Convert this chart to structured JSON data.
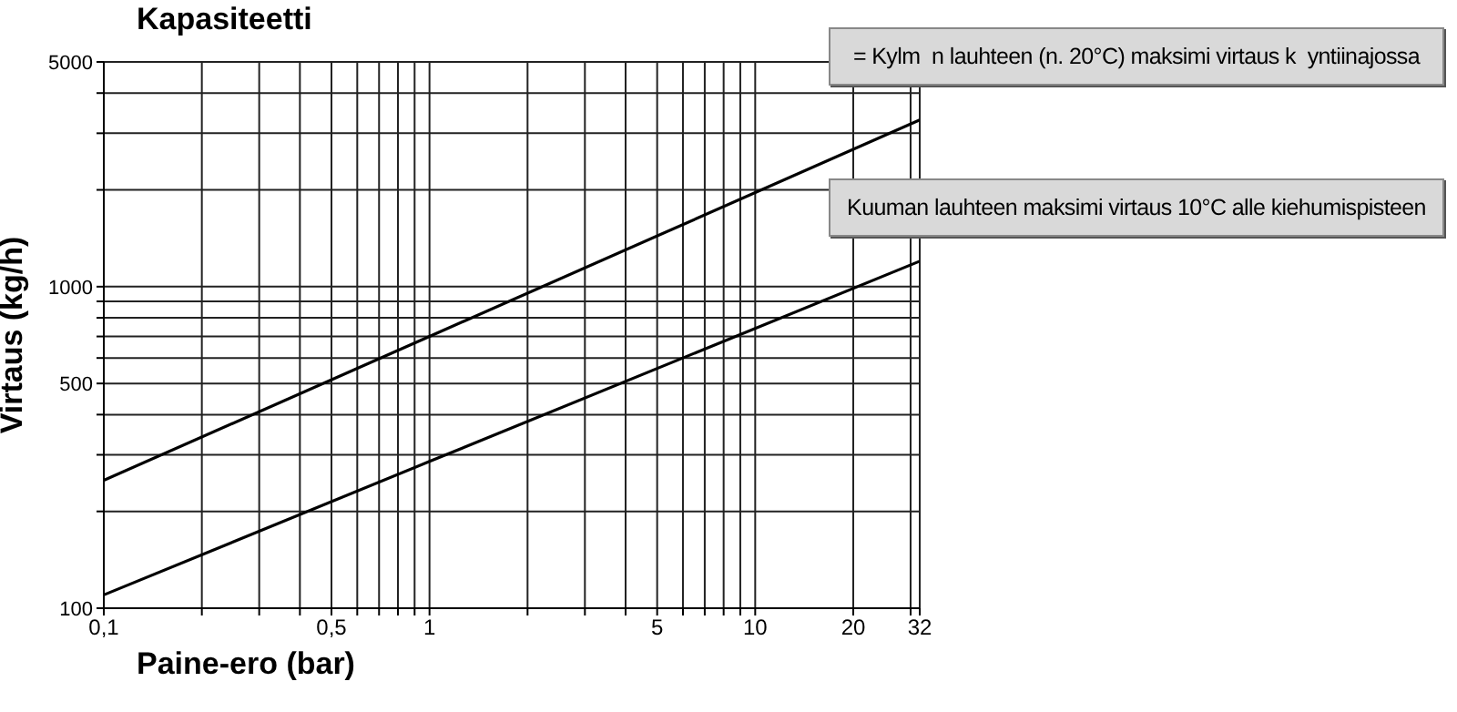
{
  "chart_data": {
    "type": "line",
    "title": "Kapasiteetti",
    "xlabel": "Paine-ero (bar)",
    "ylabel": "Virtaus (kg/h)",
    "annotations": [
      "= Kylm  n lauhteen (n. 20°C) maksimi virtaus k  yntiinajossa",
      "Kuuman lauhteen maksimi virtaus 10°C alle kiehumispisteen"
    ],
    "series": [
      {
        "color": "#000000",
        "x": [
          0.1,
          1,
          32
        ],
        "values": [
          250,
          700,
          3300
        ]
      },
      {
        "color": "#000000",
        "x": [
          0.1,
          1,
          32
        ],
        "values": [
          110,
          286,
          1200
        ]
      }
    ],
    "log": "xy",
    "xlim": [
      0.1,
      32
    ],
    "ylim": [
      100,
      5000
    ],
    "xticks": [
      {
        "value": 0.1,
        "label": "0,1"
      },
      {
        "value": 0.2,
        "label": null
      },
      {
        "value": 0.3,
        "label": null
      },
      {
        "value": 0.4,
        "label": null
      },
      {
        "value": 0.5,
        "label": "0,5"
      },
      {
        "value": 0.6,
        "label": null
      },
      {
        "value": 0.7,
        "label": null
      },
      {
        "value": 0.8,
        "label": null
      },
      {
        "value": 0.9,
        "label": null
      },
      1,
      {
        "value": 2,
        "label": null
      },
      {
        "value": 3,
        "label": null
      },
      {
        "value": 4,
        "label": null
      },
      5,
      {
        "value": 6,
        "label": null
      },
      {
        "value": 7,
        "label": null
      },
      {
        "value": 8,
        "label": null
      },
      {
        "value": 9,
        "label": null
      },
      10,
      20,
      {
        "value": 30,
        "label": null
      },
      32
    ],
    "yticks": [
      100,
      {
        "value": 200,
        "label": null
      },
      {
        "value": 300,
        "label": null
      },
      {
        "value": 400,
        "label": null
      },
      500,
      {
        "value": 600,
        "label": null
      },
      {
        "value": 700,
        "label": null
      },
      {
        "value": 800,
        "label": null
      },
      {
        "value": 900,
        "label": null
      },
      1000,
      {
        "value": 2000,
        "label": null
      },
      {
        "value": 3000,
        "label": null
      },
      {
        "value": 4000,
        "label": null
      },
      5000
    ],
    "grid": true,
    "marker": "none",
    "line_style": "solid"
  }
}
